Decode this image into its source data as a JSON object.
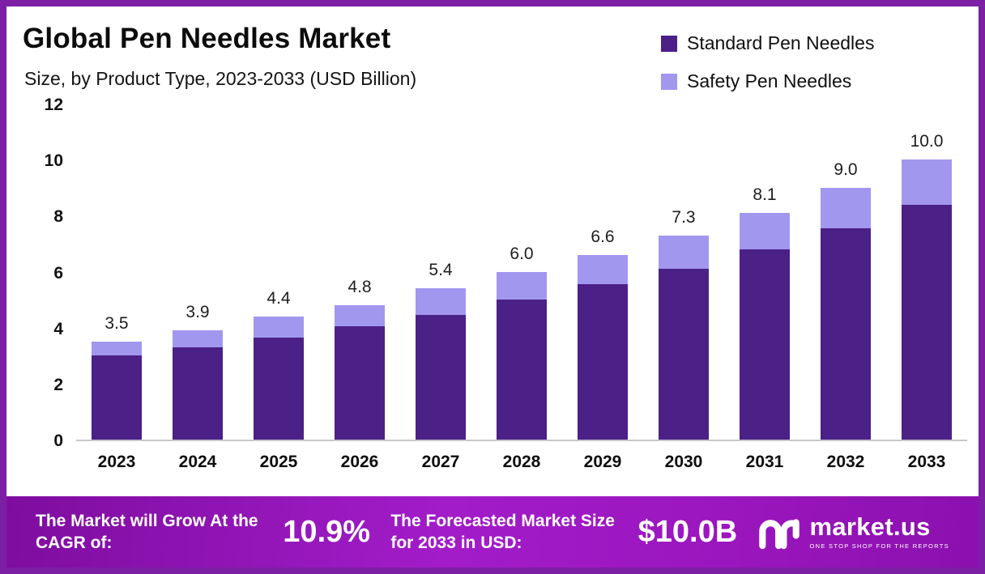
{
  "header": {
    "title": "Global Pen Needles Market",
    "subtitle": "Size, by Product Type, 2023-2033 (USD Billion)"
  },
  "legend": [
    {
      "label": "Standard Pen Needles",
      "color": "#4b2087"
    },
    {
      "label": "Safety Pen Needles",
      "color": "#a297ef"
    }
  ],
  "chart_data": {
    "type": "bar",
    "stacked": true,
    "title": "Global Pen Needles Market",
    "subtitle": "Size, by Product Type, 2023-2033 (USD Billion)",
    "categories": [
      "2023",
      "2024",
      "2025",
      "2026",
      "2027",
      "2028",
      "2029",
      "2030",
      "2031",
      "2032",
      "2033"
    ],
    "series": [
      {
        "name": "Standard Pen Needles",
        "color": "#4b2087",
        "values": [
          3.0,
          3.3,
          3.65,
          4.05,
          4.45,
          5.0,
          5.55,
          6.1,
          6.8,
          7.55,
          8.4
        ]
      },
      {
        "name": "Safety Pen Needles",
        "color": "#a297ef",
        "values": [
          0.5,
          0.6,
          0.75,
          0.75,
          0.95,
          1.0,
          1.05,
          1.2,
          1.3,
          1.45,
          1.6
        ]
      }
    ],
    "totals": [
      "3.5",
      "3.9",
      "4.4",
      "4.8",
      "5.4",
      "6.0",
      "6.6",
      "7.3",
      "8.1",
      "9.0",
      "10.0"
    ],
    "xlabel": "",
    "ylabel": "",
    "ylim": [
      0,
      12
    ],
    "yticks": [
      12,
      10,
      8,
      6,
      4,
      2,
      0
    ],
    "grid": false,
    "legend_position": "top-right"
  },
  "banner": {
    "cagr_label": "The Market will Grow At the CAGR of:",
    "cagr_value": "10.9%",
    "forecast_label": "The Forecasted Market Size for 2033 in USD:",
    "forecast_value": "$10.0B",
    "brand_name": "market.us",
    "brand_tagline": "One Stop Shop For The Reports"
  },
  "colors": {
    "frame_border": "#7c1fa5",
    "banner_gradient_start": "#7e0d9f",
    "banner_gradient_end": "#8b10ae",
    "standard_bar": "#4b2087",
    "safety_bar": "#a297ef",
    "baseline": "#c8c8c8"
  }
}
